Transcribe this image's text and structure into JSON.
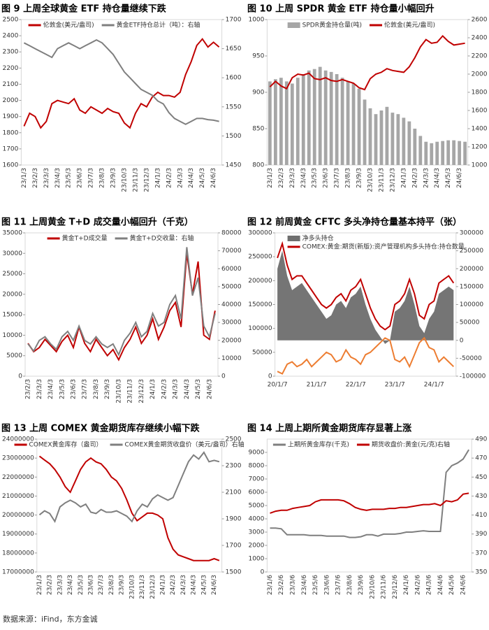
{
  "chart_data": [
    {
      "type": "line",
      "title": "图 9  上周全球黄金 ETF 持仓量继续下跌",
      "legend": "top",
      "x_label_rotation": 90,
      "categories": [
        "23/1/3",
        null,
        "23/2/3",
        null,
        "23/3/3",
        null,
        "23/4/3",
        null,
        "23/5/3",
        null,
        "23/6/3",
        null,
        "23/7/3",
        null,
        "23/8/3",
        null,
        "23/9/3",
        null,
        "23/10/3",
        null,
        "23/11/3",
        null,
        "23/12/3",
        null,
        "24/1/3",
        null,
        "24/2/3",
        null,
        "24/3/3",
        null,
        "24/4/3",
        null,
        "24/5/3",
        null,
        "24/6/3",
        null
      ],
      "ylim": [
        1600,
        2500
      ],
      "yticks": [
        1600,
        1700,
        1800,
        1900,
        2000,
        2100,
        2200,
        2300,
        2400,
        2500
      ],
      "y2lim": [
        1450,
        1700
      ],
      "y2ticks": [
        1450,
        1500,
        1550,
        1600,
        1650,
        1700
      ],
      "series": [
        {
          "name": "伦敦金(美元/盎司)",
          "type": "line",
          "color": "#c00000",
          "values": [
            1840,
            1920,
            1900,
            1830,
            1870,
            1980,
            2000,
            1990,
            1980,
            2010,
            1940,
            1920,
            1960,
            1940,
            1920,
            1950,
            1930,
            1920,
            1860,
            1830,
            1920,
            1980,
            1960,
            2020,
            2050,
            2030,
            2030,
            2020,
            2050,
            2160,
            2240,
            2340,
            2380,
            2330,
            2360,
            2330
          ]
        },
        {
          "name": "黄金ETF持仓总计（吨）：右轴",
          "type": "line",
          "axis": "y2",
          "color": "#7f7f7f",
          "values": [
            1660,
            1655,
            1650,
            1645,
            1640,
            1635,
            1650,
            1655,
            1660,
            1655,
            1650,
            1655,
            1660,
            1665,
            1660,
            1650,
            1640,
            1625,
            1610,
            1600,
            1590,
            1580,
            1575,
            1570,
            1560,
            1555,
            1540,
            1530,
            1525,
            1520,
            1525,
            1530,
            1530,
            1528,
            1527,
            1525
          ]
        }
      ]
    },
    {
      "type": "combo",
      "title": "图 10  上周 SPDR 黄金 ETF 持仓量小幅回升",
      "legend": "top",
      "x_label_rotation": 90,
      "categories": [
        "23/1/3",
        null,
        "23/2/3",
        null,
        "23/3/3",
        null,
        "23/4/3",
        null,
        "23/5/3",
        null,
        "23/6/3",
        null,
        "23/7/3",
        null,
        "23/8/3",
        null,
        "23/9/3",
        null,
        "23/10/3",
        null,
        "23/11/3",
        null,
        "23/12/3",
        null,
        "24/1/3",
        null,
        "24/2/3",
        null,
        "24/3/3",
        null,
        "24/4/3",
        null,
        "24/5/3",
        null,
        "24/6/3",
        null
      ],
      "ylim": [
        800,
        1000
      ],
      "yticks": [
        800,
        850,
        900,
        950,
        1000
      ],
      "y2lim": [
        1000,
        2600
      ],
      "y2ticks": [
        1000,
        1200,
        1400,
        1600,
        1800,
        2000,
        2200,
        2400,
        2600
      ],
      "series": [
        {
          "name": "SPDR黄金持仓量(吨)",
          "type": "bar",
          "color": "#a6a6a6",
          "values": [
            915,
            918,
            920,
            915,
            912,
            920,
            925,
            930,
            932,
            935,
            930,
            928,
            925,
            920,
            915,
            912,
            905,
            890,
            878,
            870,
            875,
            880,
            872,
            870,
            865,
            860,
            850,
            840,
            832,
            830,
            832,
            833,
            834,
            834,
            833,
            832
          ]
        },
        {
          "name": "伦敦金(美元/盎司)",
          "type": "line",
          "axis": "y2",
          "color": "#c00000",
          "values": [
            1860,
            1920,
            1870,
            1840,
            1960,
            2000,
            1990,
            2010,
            1950,
            1940,
            1960,
            1930,
            1920,
            1940,
            1920,
            1900,
            1850,
            1830,
            1950,
            2000,
            2020,
            2060,
            2040,
            2030,
            2020,
            2080,
            2180,
            2300,
            2380,
            2340,
            2350,
            2420,
            2360,
            2320,
            2330,
            2340
          ]
        }
      ]
    },
    {
      "type": "line",
      "title": "图 11  上周黄金 T+D 成交量小幅回升（千克）",
      "legend": "top",
      "x_label_rotation": 90,
      "categories": [
        "23/2/3",
        null,
        "23/3/3",
        null,
        "23/4/3",
        null,
        "23/5/3",
        null,
        "23/6/3",
        null,
        "23/7/3",
        null,
        "23/8/3",
        null,
        "23/9/3",
        null,
        "23/10/3",
        null,
        "23/11/3",
        null,
        "23/12/3",
        null,
        "24/1/3",
        null,
        "24/2/3",
        null,
        "24/3/3",
        null,
        "24/4/3",
        null,
        "24/5/3",
        null,
        "24/6/3",
        null
      ],
      "ylim": [
        0,
        35000
      ],
      "yticks": [
        0,
        5000,
        10000,
        15000,
        20000,
        25000,
        30000,
        35000
      ],
      "y2lim": [
        0,
        80000
      ],
      "y2ticks": [
        0,
        10000,
        20000,
        30000,
        40000,
        50000,
        60000,
        70000,
        80000
      ],
      "series": [
        {
          "name": "黄金T+D成交量",
          "type": "line",
          "color": "#c00000",
          "values": [
            8000,
            6000,
            7000,
            9000,
            7500,
            6000,
            8500,
            10000,
            7000,
            12000,
            8000,
            6000,
            9000,
            7000,
            5000,
            6500,
            4000,
            7000,
            9000,
            12000,
            8000,
            10000,
            14000,
            9000,
            12000,
            16000,
            18000,
            12000,
            30000,
            20000,
            28000,
            10000,
            9000,
            16000
          ]
        },
        {
          "name": "黄金T+D交收量：右轴",
          "type": "line",
          "axis": "y2",
          "color": "#7f7f7f",
          "values": [
            18000,
            14000,
            20000,
            22000,
            18000,
            15000,
            22000,
            25000,
            20000,
            28000,
            20000,
            18000,
            22000,
            18000,
            16000,
            18000,
            12000,
            20000,
            24000,
            30000,
            22000,
            25000,
            35000,
            28000,
            30000,
            40000,
            45000,
            32000,
            72000,
            45000,
            55000,
            28000,
            22000,
            35000
          ]
        }
      ]
    },
    {
      "type": "combo",
      "title": "图 12  前周黄金 CFTC 多头净持仓量基本持平（张）",
      "legend": "upper left",
      "x_label_rotation": 0,
      "categories": [
        "20/1/7",
        null,
        null,
        null,
        null,
        null,
        null,
        null,
        "21/1/7",
        null,
        null,
        null,
        null,
        null,
        null,
        null,
        "22/1/7",
        null,
        null,
        null,
        null,
        null,
        null,
        null,
        "23/1/7",
        null,
        null,
        null,
        null,
        null,
        null,
        null,
        "24/1/7",
        null,
        null,
        null,
        null
      ],
      "ylim": [
        0,
        300000
      ],
      "yticks": [
        0,
        50000,
        100000,
        150000,
        200000,
        250000,
        300000
      ],
      "y2lim": [
        -100000,
        300000
      ],
      "y2ticks": [
        -100000,
        -50000,
        0,
        50000,
        100000,
        150000,
        200000,
        250000,
        300000
      ],
      "series": [
        {
          "name": "净多头持仓",
          "type": "area",
          "axis": "y2",
          "color": "#6e6e6e",
          "values": [
            200000,
            250000,
            180000,
            140000,
            150000,
            160000,
            140000,
            120000,
            100000,
            80000,
            60000,
            70000,
            100000,
            110000,
            90000,
            120000,
            130000,
            150000,
            100000,
            60000,
            30000,
            10000,
            -10000,
            0,
            80000,
            90000,
            110000,
            150000,
            100000,
            40000,
            20000,
            60000,
            80000,
            130000,
            140000,
            150000,
            140000
          ]
        },
        {
          "name": "COMEX:黄金:期货(新版):资产管理机构多头持仓:持仓数量",
          "type": "line",
          "axis": "y2",
          "color": "#c00000",
          "values": [
            230000,
            270000,
            210000,
            170000,
            180000,
            180000,
            160000,
            140000,
            120000,
            100000,
            90000,
            100000,
            120000,
            130000,
            110000,
            140000,
            150000,
            170000,
            130000,
            90000,
            60000,
            40000,
            30000,
            40000,
            100000,
            110000,
            130000,
            170000,
            130000,
            70000,
            60000,
            100000,
            110000,
            160000,
            170000,
            180000,
            160000
          ]
        },
        {
          "type": "line",
          "color": "#ed7d31",
          "values": [
            10000,
            5000,
            25000,
            30000,
            20000,
            25000,
            35000,
            20000,
            30000,
            40000,
            50000,
            45000,
            30000,
            35000,
            55000,
            40000,
            35000,
            25000,
            45000,
            50000,
            60000,
            70000,
            80000,
            75000,
            35000,
            30000,
            40000,
            20000,
            45000,
            70000,
            80000,
            60000,
            55000,
            30000,
            40000,
            30000,
            20000
          ]
        }
      ]
    },
    {
      "type": "line",
      "title": "图 13  上周 COMEX 黄金期货库存继续小幅下跌",
      "legend": "top",
      "x_label_rotation": 90,
      "categories": [
        "23/1/3",
        null,
        "23/2/3",
        null,
        "23/3/3",
        null,
        "23/4/3",
        null,
        "23/5/3",
        null,
        "23/6/3",
        null,
        "23/7/3",
        null,
        "23/8/3",
        null,
        "23/9/3",
        null,
        "23/10/3",
        null,
        "23/11/3",
        null,
        "23/12/3",
        null,
        "24/1/3",
        null,
        "24/2/3",
        null,
        "24/3/3",
        null,
        "24/4/3",
        null,
        "24/5/3",
        null,
        "24/6/3",
        null
      ],
      "ylim": [
        17000000,
        24000000
      ],
      "yticks": [
        17000000,
        18000000,
        19000000,
        20000000,
        21000000,
        22000000,
        23000000,
        24000000
      ],
      "y2lim": [
        1500,
        2500
      ],
      "y2ticks": [
        1500,
        1700,
        1900,
        2100,
        2300,
        2500
      ],
      "series": [
        {
          "name": "COMEX黄金库存（盎司）",
          "type": "line",
          "color": "#c00000",
          "values": [
            23100000,
            22900000,
            22700000,
            22400000,
            22000000,
            21500000,
            21200000,
            21800000,
            22400000,
            22800000,
            23000000,
            22800000,
            22700000,
            22400000,
            22000000,
            21800000,
            21400000,
            20800000,
            20100000,
            19700000,
            19900000,
            20100000,
            20100000,
            20000000,
            19800000,
            18800000,
            18200000,
            17900000,
            17800000,
            17700000,
            17600000,
            17600000,
            17600000,
            17600000,
            17700000,
            17600000
          ]
        },
        {
          "name": "COMEX黄金期货收盘价（美元/盎司）右轴",
          "type": "line",
          "axis": "y2",
          "color": "#7f7f7f",
          "values": [
            1930,
            1960,
            1940,
            1880,
            1990,
            2020,
            2040,
            2020,
            1990,
            2010,
            1950,
            1940,
            1970,
            1950,
            1950,
            1960,
            1940,
            1920,
            1880,
            1960,
            2010,
            1990,
            2050,
            2080,
            2060,
            2040,
            2060,
            2150,
            2240,
            2330,
            2380,
            2350,
            2400,
            2330,
            2340,
            2330
          ]
        }
      ]
    },
    {
      "type": "line",
      "title": "图 14  上周上期所黄金期货库存显著上涨",
      "legend": "top",
      "x_label_rotation": 90,
      "categories": [
        "23/1/6",
        null,
        "23/2/6",
        null,
        "23/3/6",
        null,
        "23/4/6",
        null,
        "23/5/6",
        null,
        "23/6/6",
        null,
        "23/7/6",
        null,
        "23/8/6",
        null,
        "23/9/6",
        null,
        "23/10/6",
        null,
        "23/11/6",
        null,
        "23/12/6",
        null,
        "24/1/6",
        null,
        "24/2/6",
        null,
        "24/3/6",
        null,
        "24/4/6",
        null,
        "24/5/6",
        null,
        "24/6/6",
        null
      ],
      "ylim": [
        0,
        10000
      ],
      "yticks": [
        0,
        1000,
        2000,
        3000,
        4000,
        5000,
        6000,
        7000,
        8000,
        9000
      ],
      "y2lim": [
        350,
        490
      ],
      "y2ticks": [
        350,
        370,
        390,
        410,
        430,
        450,
        470,
        490
      ],
      "series": [
        {
          "name": "上期所黄金库存(千克)",
          "type": "line",
          "color": "#7f7f7f",
          "values": [
            3300,
            3300,
            3250,
            2800,
            2800,
            2800,
            2800,
            2750,
            2750,
            2750,
            2700,
            2700,
            2700,
            2700,
            2600,
            2600,
            2650,
            2800,
            2800,
            2700,
            2850,
            2850,
            2850,
            2900,
            3000,
            3000,
            3050,
            3100,
            3050,
            3050,
            3050,
            7500,
            8000,
            8200,
            8500,
            9200
          ]
        },
        {
          "name": "期货收盘价:黄金(元/克)右轴",
          "type": "line",
          "axis": "y2",
          "color": "#c00000",
          "values": [
            412,
            414,
            415,
            415,
            417,
            418,
            419,
            420,
            424,
            426,
            426,
            426,
            426,
            425,
            422,
            418,
            416,
            415,
            416,
            416,
            416,
            417,
            417,
            418,
            418,
            419,
            420,
            421,
            421,
            422,
            420,
            425,
            424,
            426,
            432,
            433
          ]
        }
      ]
    }
  ],
  "source": "数据来源：iFind，东方金诚"
}
